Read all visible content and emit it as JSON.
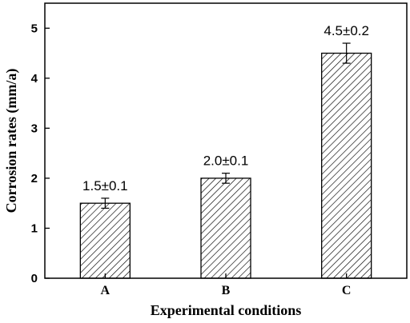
{
  "chart_data": {
    "type": "bar",
    "categories": [
      "A",
      "B",
      "C"
    ],
    "values": [
      1.5,
      2.0,
      4.5
    ],
    "errors": [
      0.1,
      0.1,
      0.2
    ],
    "data_labels": [
      "1.5±0.1",
      "2.0±0.1",
      "4.5±0.2"
    ],
    "xlabel": "Experimental conditions",
    "ylabel": "Corrosion rates (mm/a)",
    "ylim": [
      0,
      5.5
    ],
    "yticks": [
      0,
      1,
      2,
      3,
      4,
      5
    ],
    "ytick_labels": [
      "0",
      "1",
      "2",
      "3",
      "4",
      "5"
    ],
    "grid": false,
    "bar_fill": "diagonal-hatch",
    "colors": {
      "bar_stroke": "#000000",
      "hatch": "#000000",
      "background": "#ffffff"
    }
  }
}
